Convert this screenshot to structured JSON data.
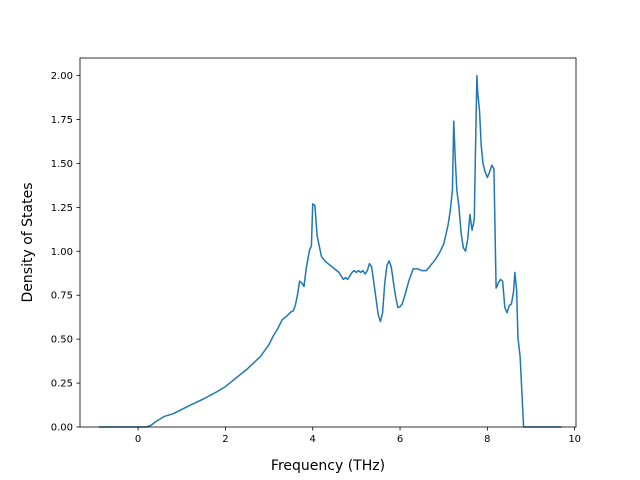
{
  "chart_data": {
    "type": "line",
    "title": "",
    "xlabel": "Frequency (THz)",
    "ylabel": "Density of States",
    "xlim": [
      -1.33,
      10.03
    ],
    "ylim": [
      0.0,
      2.1
    ],
    "xticks": [
      0,
      2,
      4,
      6,
      8,
      10
    ],
    "xtick_labels": [
      "0",
      "2",
      "4",
      "6",
      "8",
      "10"
    ],
    "yticks": [
      0.0,
      0.25,
      0.5,
      0.75,
      1.0,
      1.25,
      1.5,
      1.75,
      2.0
    ],
    "ytick_labels": [
      "0.00",
      "0.25",
      "0.50",
      "0.75",
      "1.00",
      "1.25",
      "1.50",
      "1.75",
      "2.00"
    ],
    "grid": false,
    "color": "#1f77b4",
    "series": [
      {
        "x": [
          -0.9,
          0.0,
          0.2,
          0.3,
          0.4,
          0.5,
          0.6,
          0.8,
          1.0,
          1.2,
          1.5,
          1.8,
          2.0,
          2.2,
          2.5,
          2.8,
          3.0,
          3.1,
          3.2,
          3.3,
          3.4,
          3.5,
          3.55,
          3.6,
          3.65,
          3.7,
          3.75,
          3.8,
          3.85,
          3.9,
          3.93,
          3.97,
          4.0,
          4.05,
          4.1,
          4.2,
          4.3,
          4.4,
          4.5,
          4.6,
          4.65,
          4.7,
          4.75,
          4.8,
          4.85,
          4.9,
          4.95,
          5.0,
          5.05,
          5.1,
          5.15,
          5.2,
          5.25,
          5.3,
          5.35,
          5.4,
          5.45,
          5.5,
          5.55,
          5.6,
          5.65,
          5.7,
          5.75,
          5.8,
          5.85,
          5.9,
          5.95,
          6.0,
          6.05,
          6.1,
          6.2,
          6.3,
          6.4,
          6.5,
          6.6,
          6.7,
          6.8,
          6.9,
          7.0,
          7.1,
          7.15,
          7.2,
          7.23,
          7.26,
          7.3,
          7.35,
          7.4,
          7.45,
          7.5,
          7.55,
          7.6,
          7.65,
          7.7,
          7.73,
          7.76,
          7.78,
          7.82,
          7.86,
          7.9,
          7.95,
          8.0,
          8.05,
          8.1,
          8.15,
          8.2,
          8.22,
          8.25,
          8.3,
          8.35,
          8.4,
          8.45,
          8.5,
          8.55,
          8.6,
          8.63,
          8.67,
          8.7,
          8.75,
          8.8,
          8.83,
          8.9,
          9.7
        ],
        "y": [
          0.0,
          0.0,
          0.0,
          0.01,
          0.03,
          0.045,
          0.06,
          0.075,
          0.1,
          0.125,
          0.16,
          0.2,
          0.23,
          0.27,
          0.33,
          0.4,
          0.47,
          0.52,
          0.56,
          0.61,
          0.63,
          0.655,
          0.66,
          0.69,
          0.75,
          0.83,
          0.82,
          0.8,
          0.9,
          0.97,
          1.01,
          1.03,
          1.27,
          1.26,
          1.09,
          0.97,
          0.94,
          0.92,
          0.9,
          0.88,
          0.86,
          0.84,
          0.85,
          0.84,
          0.86,
          0.88,
          0.89,
          0.88,
          0.89,
          0.88,
          0.89,
          0.87,
          0.89,
          0.93,
          0.91,
          0.82,
          0.73,
          0.64,
          0.6,
          0.65,
          0.82,
          0.92,
          0.945,
          0.91,
          0.82,
          0.74,
          0.68,
          0.685,
          0.7,
          0.74,
          0.83,
          0.9,
          0.9,
          0.89,
          0.89,
          0.92,
          0.95,
          0.99,
          1.04,
          1.15,
          1.23,
          1.35,
          1.74,
          1.55,
          1.35,
          1.25,
          1.1,
          1.02,
          1.0,
          1.07,
          1.21,
          1.12,
          1.18,
          1.6,
          2.0,
          1.9,
          1.8,
          1.6,
          1.5,
          1.45,
          1.42,
          1.45,
          1.49,
          1.47,
          0.79,
          0.8,
          0.82,
          0.84,
          0.83,
          0.68,
          0.65,
          0.69,
          0.7,
          0.77,
          0.88,
          0.78,
          0.51,
          0.4,
          0.15,
          0.0,
          0.0,
          0.0
        ]
      }
    ]
  }
}
